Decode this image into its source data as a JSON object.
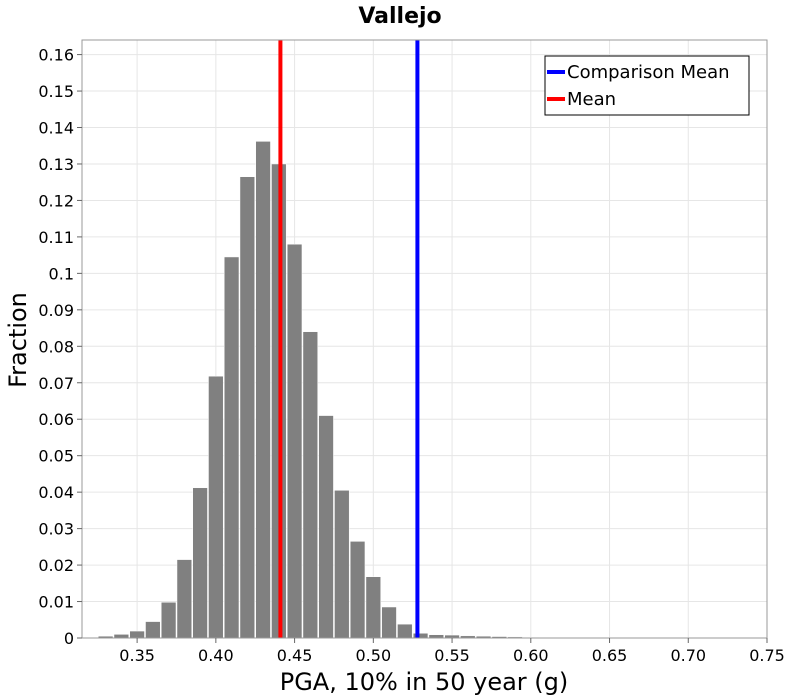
{
  "chart_data": {
    "type": "bar",
    "title": "Vallejo",
    "xlabel": "PGA, 10% in 50 year (g)",
    "ylabel": "Fraction",
    "xlim": [
      0.315,
      0.75
    ],
    "ylim": [
      0,
      0.164
    ],
    "grid": true,
    "x_ticks": [
      "0.35",
      "0.40",
      "0.45",
      "0.50",
      "0.55",
      "0.60",
      "0.65",
      "0.70",
      "0.75"
    ],
    "x_tick_values": [
      0.35,
      0.4,
      0.45,
      0.5,
      0.55,
      0.6,
      0.65,
      0.7,
      0.75
    ],
    "y_ticks": [
      "0",
      "0.01",
      "0.02",
      "0.03",
      "0.04",
      "0.05",
      "0.06",
      "0.07",
      "0.08",
      "0.09",
      "0.1",
      "0.11",
      "0.12",
      "0.13",
      "0.14",
      "0.15",
      "0.16"
    ],
    "y_tick_values": [
      0,
      0.01,
      0.02,
      0.03,
      0.04,
      0.05,
      0.06,
      0.07,
      0.08,
      0.09,
      0.1,
      0.11,
      0.12,
      0.13,
      0.14,
      0.15,
      0.16
    ],
    "bin_width": 0.01,
    "bin_centers": [
      0.32,
      0.33,
      0.34,
      0.35,
      0.36,
      0.37,
      0.38,
      0.39,
      0.4,
      0.41,
      0.42,
      0.43,
      0.44,
      0.45,
      0.46,
      0.47,
      0.48,
      0.49,
      0.5,
      0.51,
      0.52,
      0.53,
      0.54,
      0.55,
      0.56,
      0.57,
      0.58,
      0.59,
      0.6,
      0.61,
      0.62,
      0.63,
      0.64,
      0.65,
      0.66,
      0.67,
      0.68,
      0.69,
      0.7,
      0.71,
      0.72,
      0.73,
      0.74
    ],
    "values": [
      0.0002,
      0.0005,
      0.001,
      0.0019,
      0.0045,
      0.0098,
      0.0215,
      0.0412,
      0.0718,
      0.1045,
      0.1265,
      0.1362,
      0.13,
      0.108,
      0.084,
      0.061,
      0.0405,
      0.0265,
      0.0168,
      0.0085,
      0.0038,
      0.0013,
      0.0009,
      0.0008,
      0.0006,
      0.0005,
      0.0004,
      0.0003,
      0.0002,
      0.0001,
      0.0001,
      0.0001,
      0.0001,
      0.0001,
      0.0001,
      0.0001,
      0.0001,
      0.0001,
      0.0001,
      0.0001,
      0.0001,
      0.0001,
      0.0001
    ],
    "bar_color": "#808080",
    "reference_lines": [
      {
        "name": "Comparison Mean",
        "x": 0.528,
        "color": "#0000ff"
      },
      {
        "name": "Mean",
        "x": 0.441,
        "color": "#ff0000"
      }
    ],
    "legend_position": "top-right"
  }
}
